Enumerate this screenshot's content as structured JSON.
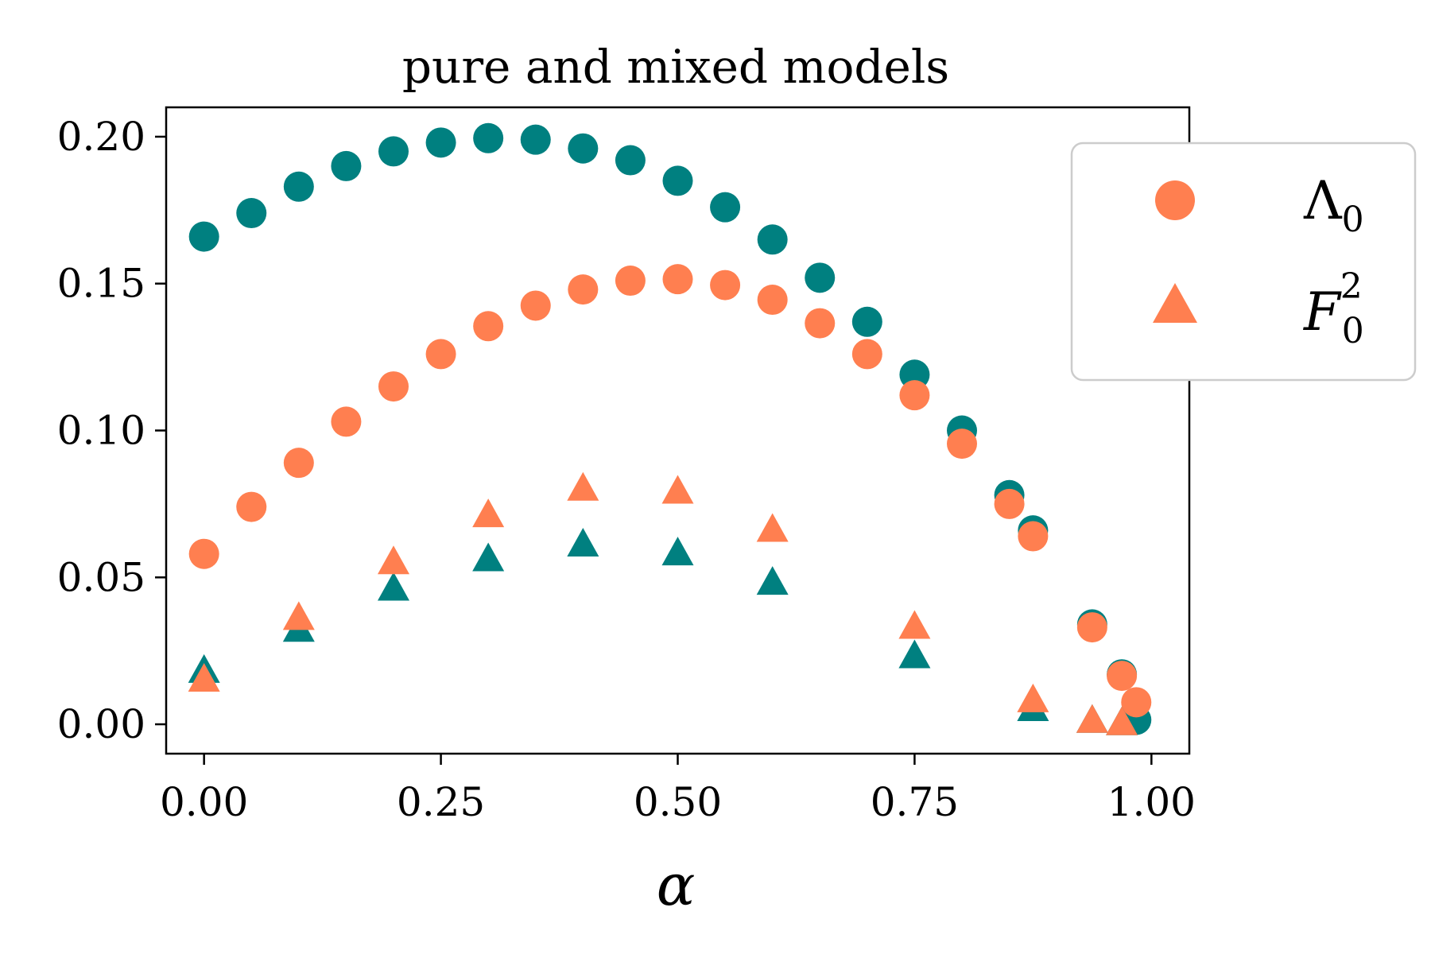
{
  "chart_data": {
    "type": "scatter",
    "title": "pure and mixed models",
    "xlabel": "α",
    "ylabel": "",
    "xlim": [
      -0.04,
      1.04
    ],
    "ylim": [
      -0.01,
      0.21
    ],
    "xticks": [
      "0.00",
      "0.25",
      "0.50",
      "0.75",
      "1.00"
    ],
    "xtick_values": [
      0.0,
      0.25,
      0.5,
      0.75,
      1.0
    ],
    "yticks": [
      "0.00",
      "0.05",
      "0.10",
      "0.15",
      "0.20"
    ],
    "ytick_values": [
      0.0,
      0.05,
      0.1,
      0.15,
      0.2
    ],
    "grid": false,
    "legend": {
      "placement": "outside-top-right",
      "entries": [
        {
          "symbol": "Λ",
          "subscript": "0",
          "superscript": "",
          "marker": "circle",
          "color": "#FF7F50"
        },
        {
          "symbol": "F",
          "subscript": "0",
          "superscript": "2",
          "marker": "triangle",
          "color": "#FF7F50"
        }
      ]
    },
    "colors": {
      "pure": "#008080",
      "mixed": "#FF7F50"
    },
    "series": [
      {
        "name": "Λ0 (teal)",
        "marker": "circle",
        "color": "#008080",
        "x": [
          0.0,
          0.05,
          0.1,
          0.15,
          0.2,
          0.25,
          0.3,
          0.35,
          0.4,
          0.45,
          0.5,
          0.55,
          0.6,
          0.65,
          0.7,
          0.75,
          0.8,
          0.85,
          0.875,
          0.9375,
          0.96875,
          0.984
        ],
        "y": [
          0.166,
          0.174,
          0.183,
          0.19,
          0.195,
          0.198,
          0.1995,
          0.199,
          0.196,
          0.192,
          0.185,
          0.176,
          0.165,
          0.152,
          0.137,
          0.119,
          0.1,
          0.078,
          0.066,
          0.034,
          0.017,
          0.0015
        ]
      },
      {
        "name": "Λ0 (coral)",
        "marker": "circle",
        "color": "#FF7F50",
        "x": [
          0.0,
          0.05,
          0.1,
          0.15,
          0.2,
          0.25,
          0.3,
          0.35,
          0.4,
          0.45,
          0.5,
          0.55,
          0.6,
          0.65,
          0.7,
          0.75,
          0.8,
          0.85,
          0.875,
          0.9375,
          0.96875,
          0.984
        ],
        "y": [
          0.058,
          0.074,
          0.089,
          0.103,
          0.115,
          0.126,
          0.1355,
          0.1425,
          0.148,
          0.151,
          0.1515,
          0.1495,
          0.1445,
          0.1365,
          0.126,
          0.112,
          0.0955,
          0.075,
          0.064,
          0.033,
          0.0165,
          0.0075
        ]
      },
      {
        "name": "F0² (teal)",
        "marker": "triangle",
        "color": "#008080",
        "x": [
          0.0,
          0.1,
          0.2,
          0.3,
          0.4,
          0.5,
          0.6,
          0.75,
          0.875,
          0.9375,
          0.96875
        ],
        "y": [
          0.018,
          0.032,
          0.046,
          0.056,
          0.061,
          0.058,
          0.048,
          0.023,
          0.005,
          0.001,
          0.0002
        ]
      },
      {
        "name": "F0² (coral)",
        "marker": "triangle",
        "color": "#FF7F50",
        "x": [
          0.0,
          0.1,
          0.2,
          0.3,
          0.4,
          0.5,
          0.6,
          0.75,
          0.875,
          0.9375,
          0.96875
        ],
        "y": [
          0.015,
          0.036,
          0.055,
          0.071,
          0.08,
          0.079,
          0.066,
          0.033,
          0.008,
          0.001,
          0.0002
        ]
      }
    ]
  }
}
